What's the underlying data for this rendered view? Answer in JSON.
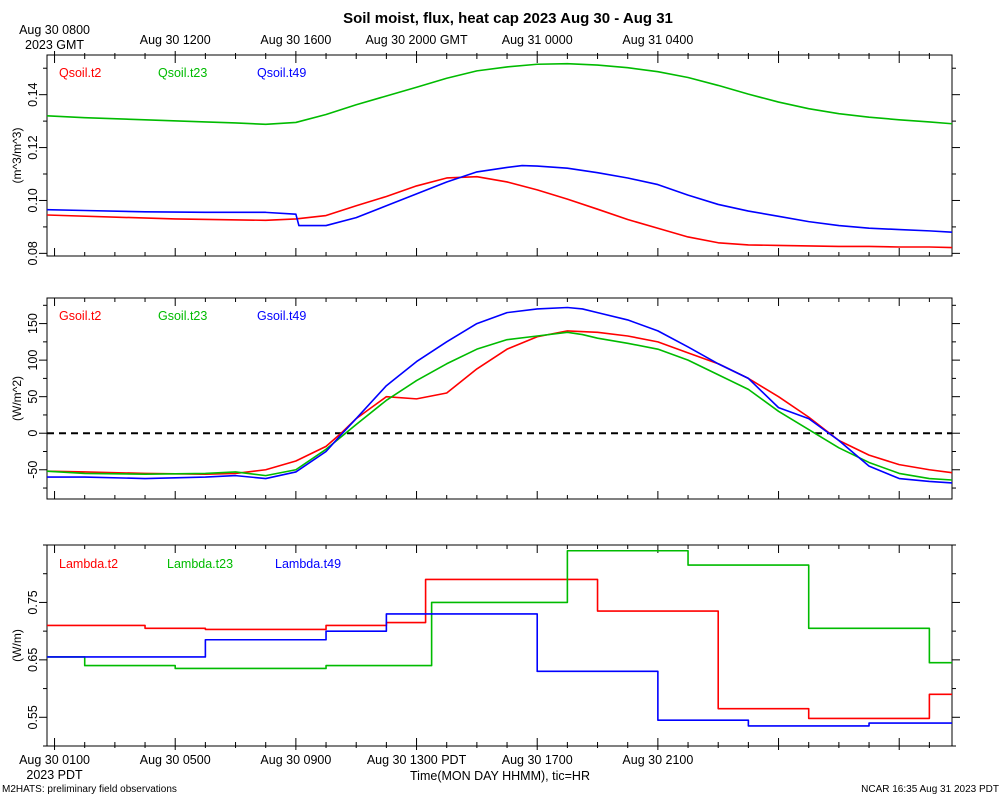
{
  "chart_data": {
    "title": "Soil moist, flux, heat cap 2023 Aug 30 - Aug 31",
    "x_axis": {
      "unit": "hours since Aug 30 0000 PDT",
      "range": [
        0.75,
        30.75
      ],
      "top_ticks": [
        {
          "pos": 1,
          "line1": "Aug 30 0800",
          "line2": "2023 GMT"
        },
        {
          "pos": 5,
          "line1": "Aug 30 1200"
        },
        {
          "pos": 9,
          "line1": "Aug 30 1600"
        },
        {
          "pos": 13,
          "line1": "Aug 30 2000 GMT"
        },
        {
          "pos": 17,
          "line1": "Aug 31 0000"
        },
        {
          "pos": 21,
          "line1": "Aug 31 0400"
        }
      ],
      "bottom_ticks": [
        {
          "pos": 1,
          "line1": "Aug 30 0100",
          "line2": "2023 PDT"
        },
        {
          "pos": 5,
          "line1": "Aug 30 0500"
        },
        {
          "pos": 9,
          "line1": "Aug 30 0900"
        },
        {
          "pos": 13,
          "line1": "Aug 30 1300 PDT"
        },
        {
          "pos": 17,
          "line1": "Aug 30 1700"
        },
        {
          "pos": 21,
          "line1": "Aug 30 2100"
        }
      ],
      "xlabel": "Time(MON DAY HHMM), tic=HR"
    },
    "footer_left": "M2HATS: preliminary field observations",
    "footer_right": "NCAR 16:35 Aug 31 2023 PDT",
    "panels": [
      {
        "type": "line",
        "ylabel": "(m^3/m^3)",
        "ylim": [
          0.079,
          0.155
        ],
        "yticks": [
          0.08,
          0.1,
          0.12,
          0.14
        ],
        "ytick_labels": [
          "0.08",
          "0.10",
          "0.12",
          "0.14"
        ],
        "zero_line": false,
        "series": [
          {
            "name": "Qsoil.t2",
            "color": "#ff0000",
            "x": [
              0.75,
              5,
              8,
              9,
              10,
              11,
              12,
              13,
              14,
              15,
              16,
              17,
              18,
              19,
              20,
              21,
              22,
              23,
              24,
              25,
              26,
              27,
              28,
              29,
              30,
              30.75
            ],
            "y": [
              0.0945,
              0.093,
              0.0925,
              0.093,
              0.0943,
              0.098,
              0.1015,
              0.1055,
              0.1085,
              0.109,
              0.107,
              0.104,
              0.1005,
              0.0967,
              0.0928,
              0.0895,
              0.0862,
              0.084,
              0.0832,
              0.083,
              0.0828,
              0.0826,
              0.0826,
              0.0824,
              0.0824,
              0.0822
            ]
          },
          {
            "name": "Qsoil.t23",
            "color": "#00bb00",
            "x": [
              0.75,
              2,
              4,
              6,
              7,
              8,
              9,
              10,
              11,
              12,
              13,
              14,
              15,
              16,
              17,
              18,
              19,
              20,
              21,
              22,
              23,
              24,
              25,
              26,
              27,
              28,
              29,
              30,
              30.75
            ],
            "y": [
              0.132,
              0.1313,
              0.1305,
              0.1297,
              0.1293,
              0.1288,
              0.1295,
              0.1325,
              0.1362,
              0.1395,
              0.1428,
              0.1462,
              0.149,
              0.1505,
              0.1515,
              0.1517,
              0.1512,
              0.1502,
              0.1487,
              0.1465,
              0.1435,
              0.1402,
              0.1372,
              0.1347,
              0.1328,
              0.1315,
              0.1305,
              0.1297,
              0.129
            ]
          },
          {
            "name": "Qsoil.t49",
            "color": "#0000ff",
            "x": [
              0.75,
              2,
              4,
              6,
              8,
              9,
              9.1,
              10,
              11,
              12,
              13,
              14,
              15,
              16,
              16.5,
              17,
              18,
              19,
              20,
              21,
              22,
              23,
              24,
              25,
              26,
              27,
              28,
              29,
              30,
              30.75
            ],
            "y": [
              0.0965,
              0.0962,
              0.0957,
              0.0955,
              0.0955,
              0.0948,
              0.0905,
              0.0905,
              0.0935,
              0.098,
              0.1025,
              0.107,
              0.1108,
              0.1125,
              0.1132,
              0.113,
              0.1122,
              0.1105,
              0.1085,
              0.106,
              0.102,
              0.0985,
              0.096,
              0.094,
              0.092,
              0.0905,
              0.0895,
              0.089,
              0.0885,
              0.088
            ]
          }
        ]
      },
      {
        "type": "line",
        "ylabel": "(W/m^2)",
        "ylim": [
          -90,
          185
        ],
        "yticks": [
          -50,
          0,
          50,
          100,
          150
        ],
        "ytick_labels": [
          "-50",
          "0",
          "50",
          "100",
          "150"
        ],
        "zero_line": true,
        "series": [
          {
            "name": "Gsoil.t2",
            "color": "#ff0000",
            "x": [
              0.75,
              2,
              4,
              6,
              7,
              8,
              9,
              10,
              10.5,
              11,
              11.5,
              12,
              13,
              14,
              15,
              16,
              17,
              18,
              19,
              20,
              21,
              22,
              23,
              24,
              25,
              26,
              27,
              28,
              29,
              30,
              30.75
            ],
            "y": [
              -52,
              -53,
              -55,
              -56,
              -55,
              -50,
              -38,
              -18,
              0,
              20,
              35,
              50,
              47,
              55,
              88,
              115,
              132,
              140,
              138,
              133,
              125,
              110,
              95,
              75,
              50,
              22,
              -10,
              -30,
              -43,
              -50,
              -54
            ]
          },
          {
            "name": "Gsoil.t23",
            "color": "#00bb00",
            "x": [
              0.75,
              2,
              4,
              6,
              7,
              8,
              9,
              10,
              10.5,
              11,
              12,
              13,
              14,
              15,
              16,
              17,
              18,
              18.5,
              19,
              20,
              21,
              22,
              23,
              24,
              25,
              26,
              27,
              28,
              29,
              30,
              30.75
            ],
            "y": [
              -52,
              -55,
              -56,
              -55,
              -53,
              -58,
              -50,
              -22,
              -5,
              12,
              45,
              72,
              95,
              115,
              128,
              133,
              138,
              135,
              130,
              123,
              115,
              100,
              80,
              60,
              30,
              5,
              -20,
              -40,
              -55,
              -62,
              -64
            ]
          },
          {
            "name": "Gsoil.t49",
            "color": "#0000ff",
            "x": [
              0.75,
              2,
              4,
              6,
              7,
              8,
              9,
              10,
              10.5,
              11,
              12,
              13,
              14,
              15,
              16,
              17,
              18,
              18.5,
              19,
              20,
              21,
              22,
              23,
              24,
              25,
              26,
              27,
              28,
              29,
              30,
              30.75
            ],
            "y": [
              -60,
              -60,
              -62,
              -60,
              -58,
              -62,
              -53,
              -25,
              -2,
              20,
              65,
              98,
              125,
              150,
              165,
              170,
              172,
              170,
              165,
              155,
              140,
              118,
              95,
              75,
              35,
              20,
              -10,
              -45,
              -62,
              -66,
              -68
            ]
          }
        ]
      },
      {
        "type": "line",
        "ylabel": "(W/m)",
        "ylim": [
          0.5,
          0.85
        ],
        "yticks": [
          0.55,
          0.65,
          0.75
        ],
        "ytick_labels": [
          "0.55",
          "0.65",
          "0.75"
        ],
        "zero_line": false,
        "series": [
          {
            "name": "Lambda.t2",
            "color": "#ff0000",
            "step": true,
            "x": [
              0.75,
              4,
              5.8,
              6,
              8.5,
              10,
              12,
              13.3,
              16.5,
              18,
              19,
              20,
              21,
              22,
              23,
              24,
              25,
              26,
              27,
              28,
              29,
              30,
              30.75
            ],
            "y": [
              0.71,
              0.705,
              0.705,
              0.703,
              0.703,
              0.71,
              0.715,
              0.79,
              0.79,
              0.79,
              0.735,
              0.735,
              0.735,
              0.735,
              0.565,
              0.565,
              0.565,
              0.548,
              0.548,
              0.548,
              0.548,
              0.59,
              0.59
            ]
          },
          {
            "name": "Lambda.t23",
            "color": "#00bb00",
            "step": true,
            "x": [
              0.75,
              2,
              5,
              8,
              10,
              12,
              13.5,
              15,
              17,
              18,
              19,
              20,
              21,
              22,
              23,
              24,
              25,
              26,
              27,
              28,
              29,
              30,
              30.75
            ],
            "y": [
              0.655,
              0.64,
              0.635,
              0.635,
              0.64,
              0.64,
              0.75,
              0.75,
              0.75,
              0.84,
              0.84,
              0.84,
              0.84,
              0.815,
              0.815,
              0.815,
              0.815,
              0.705,
              0.705,
              0.705,
              0.705,
              0.645,
              0.645
            ]
          },
          {
            "name": "Lambda.t49",
            "color": "#0000ff",
            "step": true,
            "x": [
              0.75,
              4,
              6,
              8,
              10,
              12,
              14,
              16,
              17,
              18,
              19,
              20,
              21,
              22,
              23,
              24,
              25,
              26,
              27,
              28,
              29,
              30,
              30.75
            ],
            "y": [
              0.655,
              0.655,
              0.685,
              0.685,
              0.7,
              0.73,
              0.73,
              0.73,
              0.63,
              0.63,
              0.63,
              0.63,
              0.545,
              0.545,
              0.545,
              0.535,
              0.535,
              0.535,
              0.535,
              0.54,
              0.54,
              0.54,
              0.54
            ]
          }
        ]
      }
    ]
  }
}
